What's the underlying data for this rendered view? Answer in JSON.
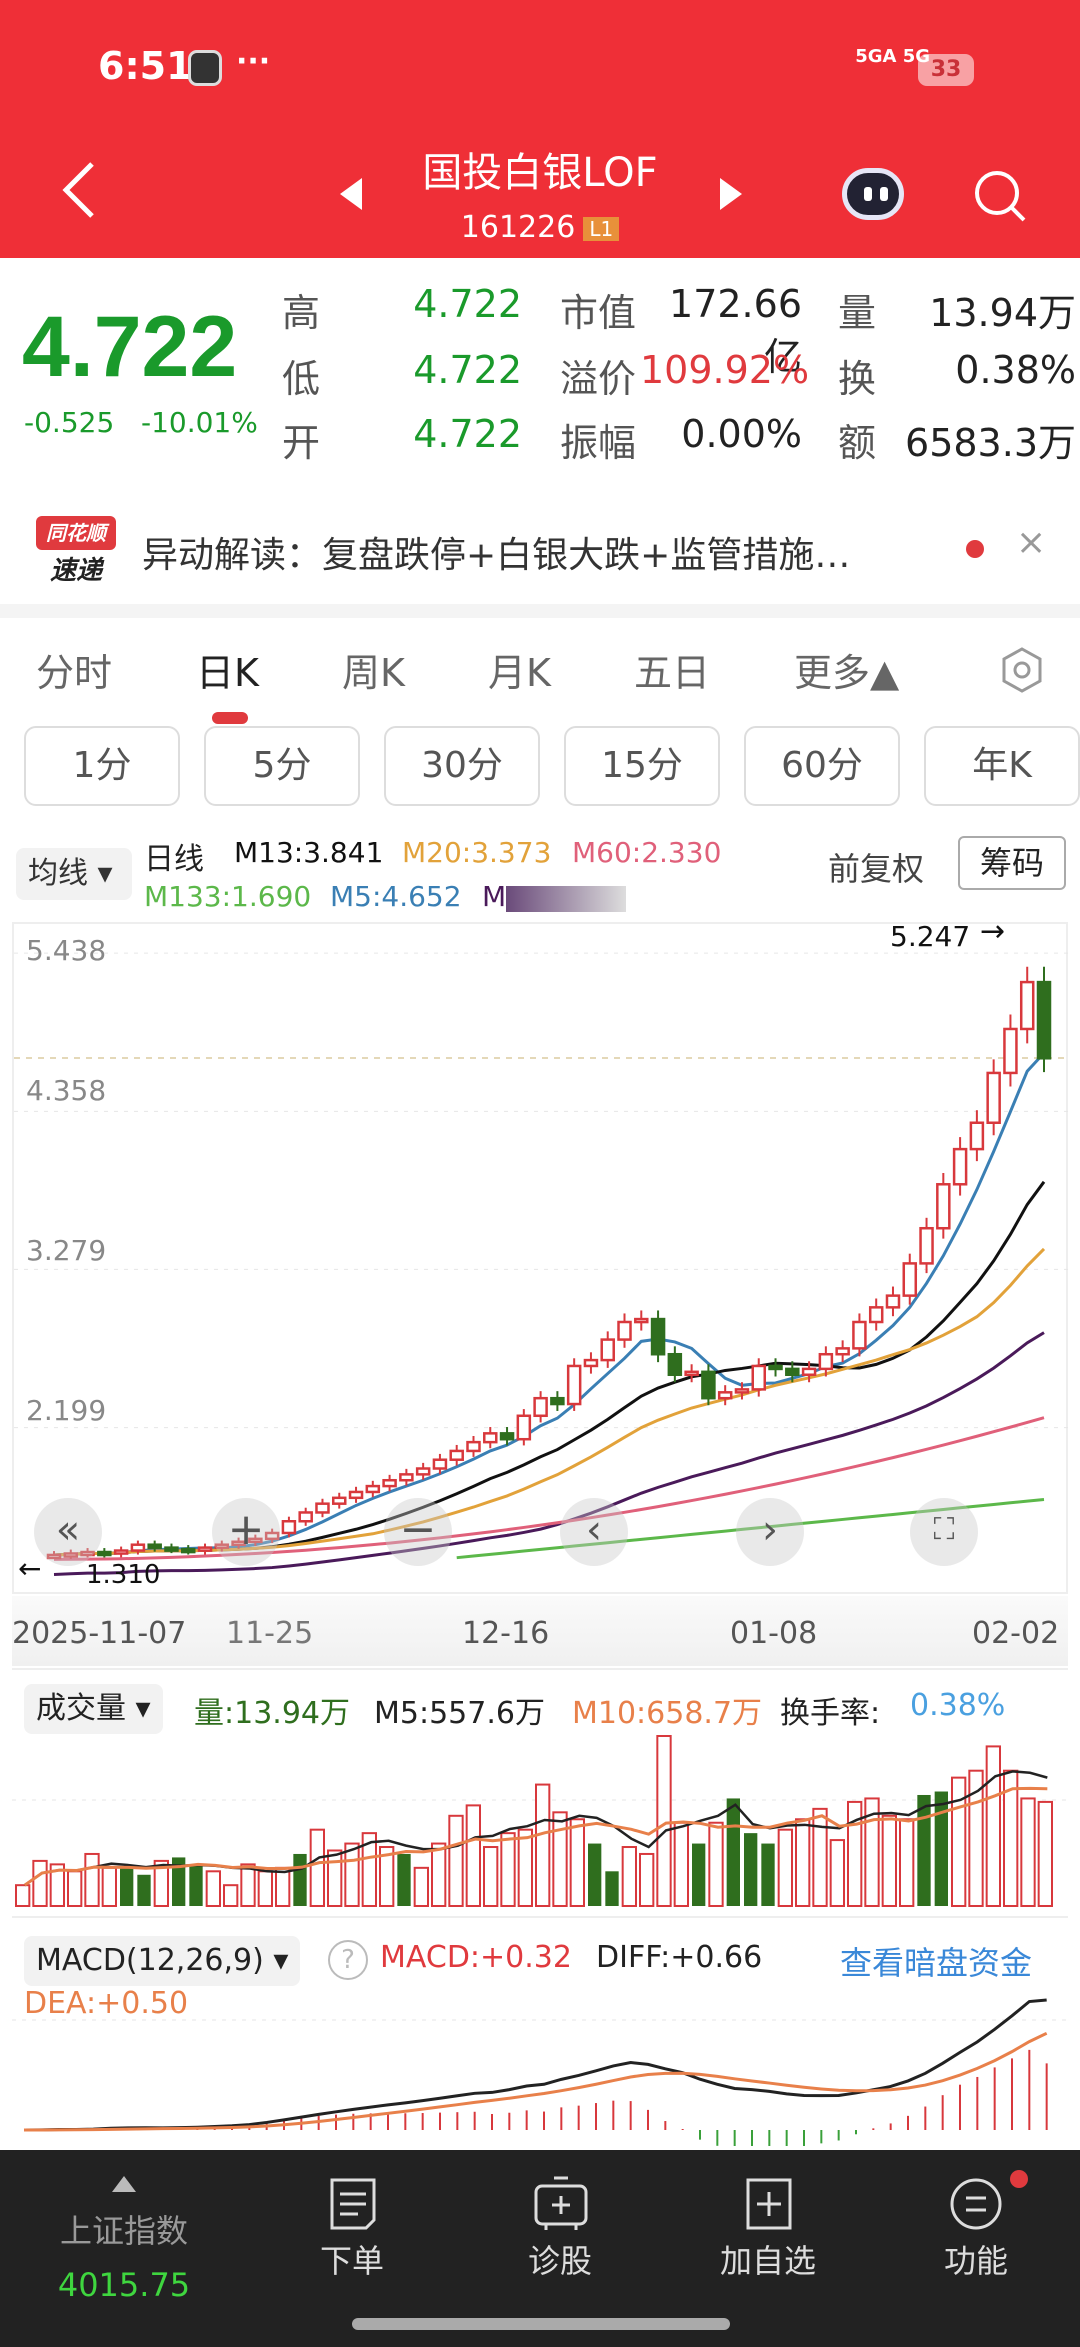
{
  "status_bar": {
    "time": "6:51",
    "dots": "···",
    "network": "5GA 5G",
    "battery": "33"
  },
  "header": {
    "title": "国投白银LOF",
    "code": "161226",
    "level_badge": "L1"
  },
  "quote": {
    "price": "4.722",
    "change": "-0.525",
    "change_pct": "-10.01%",
    "rows": [
      {
        "l1": "高",
        "v1": "4.722",
        "l2": "市值",
        "v2": "172.66亿",
        "l3": "量",
        "v3": "13.94万"
      },
      {
        "l1": "低",
        "v1": "4.722",
        "l2": "溢价",
        "v2": "109.92%",
        "l3": "换",
        "v3": "0.38%"
      },
      {
        "l1": "开",
        "v1": "4.722",
        "l2": "振幅",
        "v2": "0.00%",
        "l3": "额",
        "v3": "6583.3万"
      }
    ]
  },
  "news": {
    "logo_top": "同花顺",
    "logo_bottom": "速递",
    "text": "异动解读：复盘跌停+白银大跌+监管措施…",
    "close": "×"
  },
  "tabs": [
    {
      "label": "分时"
    },
    {
      "label": "日K",
      "active": true
    },
    {
      "label": "周K"
    },
    {
      "label": "月K"
    },
    {
      "label": "五日"
    },
    {
      "label": "更多▲"
    }
  ],
  "periods": [
    "1分",
    "5分",
    "30分",
    "15分",
    "60分",
    "年K"
  ],
  "ma_legend": {
    "button": "均线 ▾",
    "line_type": "日线",
    "items": [
      {
        "label": "M13:3.841",
        "color": "#111111"
      },
      {
        "label": "M20:3.373",
        "color": "#e2a23a"
      },
      {
        "label": "M60:2.330",
        "color": "#e0607a"
      },
      {
        "label": "M133:1.690",
        "color": "#5cb84a"
      },
      {
        "label": "M5:4.652",
        "color": "#3a7fb4"
      },
      {
        "label": "M",
        "color": "#4a1a5a"
      }
    ],
    "adjust": "前复权",
    "chips": "筹码"
  },
  "chart_data": [
    {
      "type": "candlestick",
      "title": "国投白银LOF 日K",
      "y_ticks": [
        "5.438",
        "4.358",
        "3.279",
        "2.199"
      ],
      "ylim": [
        1.2,
        5.5
      ],
      "max_marker": "5.247",
      "min_marker": "1.310",
      "x_ticks": [
        "2025-11-07",
        "11-25",
        "12-16",
        "01-08",
        "02-02"
      ],
      "closes": [
        1.33,
        1.34,
        1.35,
        1.34,
        1.36,
        1.4,
        1.38,
        1.37,
        1.36,
        1.38,
        1.4,
        1.42,
        1.44,
        1.48,
        1.56,
        1.62,
        1.68,
        1.72,
        1.76,
        1.8,
        1.84,
        1.88,
        1.92,
        1.98,
        2.04,
        2.1,
        2.16,
        2.12,
        2.28,
        2.4,
        2.36,
        2.62,
        2.66,
        2.8,
        2.92,
        2.94,
        2.7,
        2.56,
        2.58,
        2.4,
        2.44,
        2.46,
        2.62,
        2.6,
        2.56,
        2.6,
        2.7,
        2.74,
        2.92,
        3.02,
        3.1,
        3.32,
        3.56,
        3.86,
        4.1,
        4.28,
        4.62,
        4.92,
        5.24,
        4.72
      ],
      "ma_series": [
        {
          "name": "M5",
          "value": "4.652",
          "color": "#3a7fb4"
        },
        {
          "name": "M13",
          "value": "3.841",
          "color": "#111111"
        },
        {
          "name": "M20",
          "value": "3.373",
          "color": "#e2a23a"
        },
        {
          "name": "M60",
          "value": "2.330",
          "color": "#e0607a"
        },
        {
          "name": "M133",
          "value": "1.690",
          "color": "#5cb84a"
        }
      ]
    },
    {
      "type": "bar",
      "title": "成交量",
      "values": [
        12,
        26,
        24,
        20,
        30,
        22,
        22,
        18,
        26,
        28,
        24,
        20,
        12,
        24,
        20,
        22,
        30,
        44,
        32,
        36,
        42,
        34,
        30,
        22,
        36,
        52,
        58,
        34,
        42,
        44,
        70,
        54,
        50,
        36,
        20,
        34,
        30,
        98,
        48,
        36,
        48,
        62,
        42,
        36,
        44,
        50,
        56,
        38,
        60,
        62,
        52,
        50,
        64,
        66,
        74,
        78,
        92,
        78,
        62,
        60
      ],
      "green_idx": [
        6,
        7,
        9,
        10,
        16,
        22,
        33,
        34,
        39,
        41,
        42,
        43,
        52,
        53
      ],
      "labels": {
        "vol": "量:13.94万",
        "m5": "M5:557.6万",
        "m10": "M10:658.7万",
        "turnover_label": "换手率:",
        "turnover": "0.38%"
      }
    },
    {
      "type": "line+bar",
      "title": "MACD(12,26,9)",
      "labels": {
        "macd": "MACD:+0.32",
        "diff": "DIFF:+0.66",
        "dea": "DEA:+0.50"
      }
    }
  ],
  "panels": {
    "vol_button": "成交量 ▾",
    "macd_button": "MACD(12,26,9) ▾",
    "help": "?",
    "dark_pool": "查看暗盘资金"
  },
  "bottom_nav": {
    "index_name": "上证指数",
    "index_value": "4015.75",
    "items": [
      {
        "label": "下单"
      },
      {
        "label": "诊股"
      },
      {
        "label": "加自选"
      },
      {
        "label": "功能"
      }
    ]
  }
}
